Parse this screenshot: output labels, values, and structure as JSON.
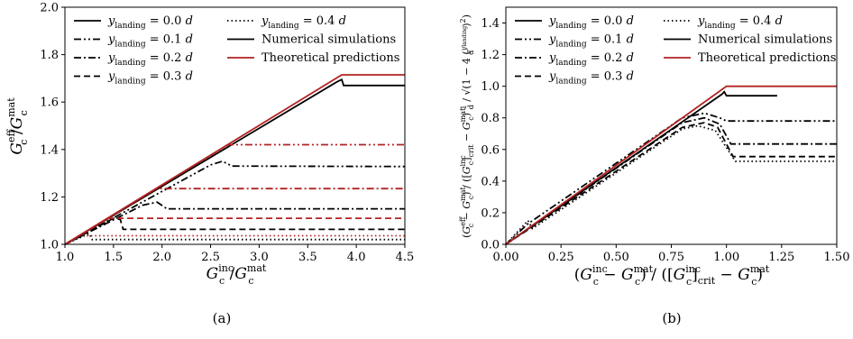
{
  "chart_data": [
    {
      "type": "line",
      "caption": "(a)",
      "xlabel": "G_c^inc / G_c^mat",
      "ylabel": "G_c^eff / G_c^mat",
      "xlim": [
        1.0,
        4.5
      ],
      "ylim": [
        1.0,
        2.0
      ],
      "xticks": [
        "1.0",
        "1.5",
        "2.0",
        "2.5",
        "3.0",
        "3.5",
        "4.0",
        "4.5"
      ],
      "yticks": [
        "1.0",
        "1.2",
        "1.4",
        "1.6",
        "1.8",
        "2.0"
      ],
      "grid": false,
      "legend_position": "top-left",
      "series": [
        {
          "name": "y_landing = 0.0 d",
          "source": "Numerical simulations",
          "dash": "solid",
          "color": "#000000",
          "points": [
            [
              1.0,
              1.0
            ],
            [
              3.8,
              1.685
            ],
            [
              3.85,
              1.695
            ],
            [
              3.87,
              1.67
            ],
            [
              4.5,
              1.67
            ]
          ]
        },
        {
          "name": "y_landing = 0.1 d",
          "source": "Numerical simulations",
          "dash": "dashdotdot",
          "color": "#000000",
          "points": [
            [
              1.0,
              1.0
            ],
            [
              2.5,
              1.335
            ],
            [
              2.62,
              1.35
            ],
            [
              2.72,
              1.33
            ],
            [
              4.5,
              1.328
            ]
          ]
        },
        {
          "name": "y_landing = 0.2 d",
          "source": "Numerical simulations",
          "dash": "dashdot",
          "color": "#000000",
          "points": [
            [
              1.0,
              1.0
            ],
            [
              1.8,
              1.165
            ],
            [
              1.95,
              1.178
            ],
            [
              2.05,
              1.15
            ],
            [
              4.5,
              1.15
            ]
          ]
        },
        {
          "name": "y_landing = 0.3 d",
          "source": "Numerical simulations",
          "dash": "dashed",
          "color": "#000000",
          "points": [
            [
              1.0,
              1.0
            ],
            [
              1.5,
              1.11
            ],
            [
              1.57,
              1.105
            ],
            [
              1.6,
              1.063
            ],
            [
              4.5,
              1.063
            ]
          ]
        },
        {
          "name": "y_landing = 0.4 d",
          "source": "Numerical simulations",
          "dash": "dotted",
          "color": "#000000",
          "points": [
            [
              1.0,
              1.0
            ],
            [
              1.25,
              1.045
            ],
            [
              1.28,
              1.02
            ],
            [
              4.5,
              1.02
            ]
          ]
        },
        {
          "name": "y_landing = 0.0 d",
          "source": "Theoretical predictions",
          "dash": "solid",
          "color": "#b22222",
          "points": [
            [
              1.0,
              1.0
            ],
            [
              3.85,
              1.715
            ],
            [
              4.5,
              1.715
            ]
          ]
        },
        {
          "name": "y_landing = 0.1 d",
          "source": "Theoretical predictions",
          "dash": "dashdotdot",
          "color": "#b22222",
          "points": [
            [
              1.0,
              1.0
            ],
            [
              2.68,
              1.42
            ],
            [
              4.5,
              1.42
            ]
          ]
        },
        {
          "name": "y_landing = 0.2 d",
          "source": "Theoretical predictions",
          "dash": "dashdot",
          "color": "#b22222",
          "points": [
            [
              1.0,
              1.0
            ],
            [
              1.94,
              1.235
            ],
            [
              4.5,
              1.235
            ]
          ]
        },
        {
          "name": "y_landing = 0.3 d",
          "source": "Theoretical predictions",
          "dash": "dashed",
          "color": "#b22222",
          "points": [
            [
              1.0,
              1.0
            ],
            [
              1.45,
              1.11
            ],
            [
              4.5,
              1.11
            ]
          ]
        },
        {
          "name": "y_landing = 0.4 d",
          "source": "Theoretical predictions",
          "dash": "dotted",
          "color": "#b22222",
          "points": [
            [
              1.0,
              1.0
            ],
            [
              1.15,
              1.036
            ],
            [
              4.5,
              1.036
            ]
          ]
        }
      ]
    },
    {
      "type": "line",
      "caption": "(b)",
      "xlabel": "(G_c^inc − G_c^mat) / ([G_c^inc]_crit − G_c^mat)",
      "ylabel": "(G_c^eff − G_c^mat) / ([G_c^inc]_crit − G_c^mat) (1/d) / sqrt(1 − 4 (y_landing/d)^2)",
      "xlim": [
        0.0,
        1.5
      ],
      "ylim": [
        0.0,
        1.5
      ],
      "xticks": [
        "0.00",
        "0.25",
        "0.50",
        "0.75",
        "1.00",
        "1.25",
        "1.50"
      ],
      "yticks": [
        "0.0",
        "0.2",
        "0.4",
        "0.6",
        "0.8",
        "1.0",
        "1.2",
        "1.4"
      ],
      "grid": false,
      "legend_position": "top",
      "series": [
        {
          "name": "y_landing = 0.0 d",
          "source": "Numerical simulations",
          "dash": "solid",
          "color": "#000000",
          "points": [
            [
              0.0,
              0.0
            ],
            [
              0.98,
              0.95
            ],
            [
              0.99,
              0.965
            ],
            [
              1.0,
              0.94
            ],
            [
              1.23,
              0.94
            ]
          ]
        },
        {
          "name": "y_landing = 0.1 d",
          "source": "Numerical simulations",
          "dash": "dashdotdot",
          "color": "#000000",
          "points": [
            [
              0.0,
              0.0
            ],
            [
              0.1,
              0.13
            ],
            [
              0.8,
              0.8
            ],
            [
              0.9,
              0.83
            ],
            [
              0.97,
              0.8
            ],
            [
              1.0,
              0.78
            ],
            [
              1.5,
              0.78
            ]
          ]
        },
        {
          "name": "y_landing = 0.2 d",
          "source": "Numerical simulations",
          "dash": "dashdot",
          "color": "#000000",
          "points": [
            [
              0.0,
              0.0
            ],
            [
              0.8,
              0.77
            ],
            [
              0.9,
              0.8
            ],
            [
              0.97,
              0.76
            ],
            [
              1.02,
              0.635
            ],
            [
              1.5,
              0.635
            ]
          ]
        },
        {
          "name": "y_landing = 0.3 d",
          "source": "Numerical simulations",
          "dash": "dashed",
          "color": "#000000",
          "points": [
            [
              0.0,
              0.0
            ],
            [
              0.8,
              0.74
            ],
            [
              0.9,
              0.77
            ],
            [
              0.96,
              0.74
            ],
            [
              1.03,
              0.555
            ],
            [
              1.5,
              0.555
            ]
          ]
        },
        {
          "name": "y_landing = 0.4 d",
          "source": "Numerical simulations",
          "dash": "dotted",
          "color": "#000000",
          "points": [
            [
              0.0,
              0.0
            ],
            [
              0.1,
              0.15
            ],
            [
              0.12,
              0.1
            ],
            [
              0.8,
              0.73
            ],
            [
              0.87,
              0.75
            ],
            [
              0.95,
              0.72
            ],
            [
              1.04,
              0.525
            ],
            [
              1.5,
              0.525
            ]
          ]
        },
        {
          "name": "Theoretical predictions",
          "source": "Theoretical predictions",
          "dash": "solid",
          "color": "#b22222",
          "points": [
            [
              0.0,
              0.0
            ],
            [
              1.0,
              1.0
            ],
            [
              1.5,
              1.0
            ]
          ]
        }
      ]
    }
  ],
  "legend_a": {
    "col1": [
      {
        "label": "y_landing = 0.0 d",
        "dash": "solid"
      },
      {
        "label": "y_landing = 0.1 d",
        "dash": "dashdotdot"
      },
      {
        "label": "y_landing = 0.2 d",
        "dash": "dashdot"
      },
      {
        "label": "y_landing = 0.3 d",
        "dash": "dashed"
      }
    ],
    "col2": [
      {
        "label": "y_landing = 0.4 d",
        "dash": "dotted",
        "color": "#000000"
      },
      {
        "label": "Numerical simulations",
        "dash": "solid",
        "color": "#000000"
      },
      {
        "label": "Theoretical predictions",
        "dash": "solid",
        "color": "#b22222"
      }
    ]
  },
  "legend_b": {
    "col1": [
      {
        "label": "y_landing = 0.0 d",
        "dash": "solid"
      },
      {
        "label": "y_landing = 0.1 d",
        "dash": "dashdotdot"
      },
      {
        "label": "y_landing = 0.2 d",
        "dash": "dashdot"
      },
      {
        "label": "y_landing = 0.3 d",
        "dash": "dashed"
      }
    ],
    "col2": [
      {
        "label": "y_landing = 0.4 d",
        "dash": "dotted",
        "color": "#000000"
      },
      {
        "label": "Numerical simulations",
        "dash": "solid",
        "color": "#000000"
      },
      {
        "label": "Theoretical predictions",
        "dash": "solid",
        "color": "#b22222"
      }
    ]
  },
  "colors": {
    "numerical": "#000000",
    "theory": "#b22222"
  },
  "captions": {
    "a": "(a)",
    "b": "(b)"
  }
}
